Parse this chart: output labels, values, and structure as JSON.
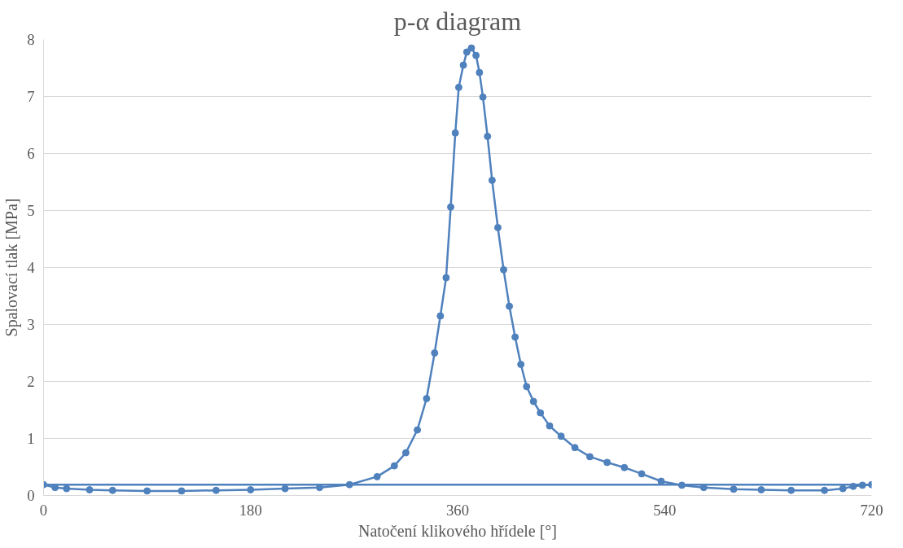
{
  "chart_data": {
    "type": "line",
    "title": "p-α diagram",
    "xlabel": "Natočení klikového hřídele [°]",
    "ylabel": "Spalovací tlak [MPa]",
    "xlim": [
      0,
      720
    ],
    "xticks": [
      0,
      180,
      360,
      540,
      720
    ],
    "ylim": [
      0,
      8
    ],
    "yticks": [
      0,
      1,
      2,
      3,
      4,
      5,
      6,
      7,
      8
    ],
    "grid": "y",
    "series": [
      {
        "marker": "circle",
        "color": "#4f81bd",
        "x": [
          0,
          10,
          20,
          40,
          60,
          90,
          120,
          150,
          180,
          210,
          240,
          266,
          290,
          305,
          315,
          325,
          333,
          340,
          345,
          350,
          354,
          358,
          361,
          365,
          368,
          372,
          376,
          379,
          382,
          386,
          390,
          395,
          400,
          405,
          410,
          415,
          420,
          426,
          432,
          440,
          450,
          462,
          475,
          490,
          505,
          520,
          537,
          555,
          574,
          600,
          624,
          650,
          679,
          695,
          704,
          712,
          720
        ],
        "values": [
          0.19,
          0.14,
          0.12,
          0.1,
          0.09,
          0.08,
          0.08,
          0.09,
          0.1,
          0.12,
          0.14,
          0.19,
          0.33,
          0.52,
          0.75,
          1.15,
          1.7,
          2.5,
          3.15,
          3.82,
          5.06,
          6.36,
          7.16,
          7.55,
          7.78,
          7.85,
          7.72,
          7.42,
          6.99,
          6.3,
          5.53,
          4.7,
          3.96,
          3.32,
          2.78,
          2.3,
          1.91,
          1.65,
          1.45,
          1.22,
          1.04,
          0.84,
          0.68,
          0.58,
          0.49,
          0.38,
          0.25,
          0.18,
          0.14,
          0.11,
          0.1,
          0.09,
          0.09,
          0.12,
          0.16,
          0.18,
          0.19
        ]
      },
      {
        "marker": "none",
        "color": "#4f81bd",
        "x": [
          0,
          720
        ],
        "values": [
          0.19,
          0.19
        ]
      }
    ]
  }
}
